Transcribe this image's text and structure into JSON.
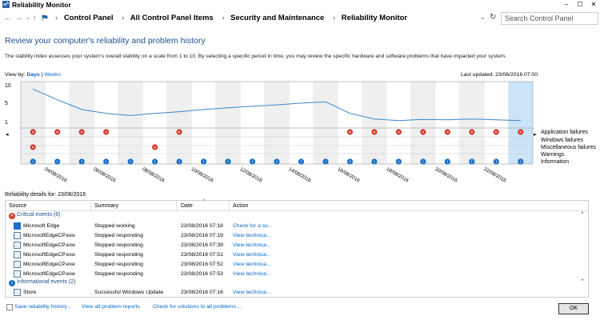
{
  "window": {
    "title": "Reliability Monitor",
    "controls": [
      "–",
      "☐",
      "✕"
    ]
  },
  "address": {
    "breadcrumbs": [
      "Control Panel",
      "All Control Panel Items",
      "Security and Maintenance",
      "Reliability Monitor"
    ],
    "search_placeholder": "Search Control Panel"
  },
  "header": {
    "title": "Review your computer's reliability and problem history",
    "description": "The stability index assesses your system's overall stability on a scale from 1 to 10. By selecting a specific period in time, you may review the specific hardware and software problems that have impacted your system.",
    "view_by_label": "View by:",
    "view_days": "Days",
    "view_sep": "|",
    "view_weeks": "Weeks",
    "last_updated": "Last updated: 23/08/2016 07:00"
  },
  "chart": {
    "y_ticks": [
      "10",
      "5",
      "1"
    ],
    "legend": [
      "Application failures",
      "Windows failures",
      "Miscellaneous failures",
      "Warnings",
      "Information"
    ],
    "date_labels": [
      "04/08/2016",
      "06/08/2016",
      "08/08/2016",
      "10/08/2016",
      "12/08/2016",
      "14/08/2016",
      "16/08/2016",
      "18/08/2016",
      "20/08/2016",
      "22/08/2016"
    ],
    "left_arrow": "◂",
    "right_arrow": "▸"
  },
  "chart_data": {
    "type": "line",
    "x": [
      "03/08/2016",
      "04/08/2016",
      "05/08/2016",
      "06/08/2016",
      "07/08/2016",
      "08/08/2016",
      "09/08/2016",
      "10/08/2016",
      "11/08/2016",
      "12/08/2016",
      "13/08/2016",
      "14/08/2016",
      "15/08/2016",
      "16/08/2016",
      "17/08/2016",
      "18/08/2016",
      "19/08/2016",
      "20/08/2016",
      "21/08/2016",
      "22/08/2016",
      "23/08/2016"
    ],
    "series": [
      {
        "values": [
          9.0,
          6.5,
          4.2,
          3.3,
          2.8,
          3.3,
          3.7,
          4.2,
          4.6,
          5.0,
          5.3,
          5.7,
          6.0,
          3.3,
          2.0,
          1.6,
          1.9,
          1.8,
          2.0,
          1.8,
          1.6
        ]
      }
    ],
    "ylim": [
      1,
      10
    ],
    "markers": {
      "application_failures": [
        0,
        1,
        2,
        3,
        6,
        13,
        14,
        15,
        16,
        17,
        18,
        19,
        20
      ],
      "windows_failures": [
        0
      ],
      "miscellaneous_failures": [
        5
      ],
      "information": [
        0,
        1,
        2,
        3,
        4,
        5,
        6,
        7,
        8,
        9,
        10,
        11,
        12,
        13,
        14,
        15,
        16,
        17,
        18,
        19,
        20
      ]
    },
    "selected_column": "23/08/2016"
  },
  "details": {
    "title": "Reliability details for: 23/08/2016",
    "columns": [
      "Source",
      "Summary",
      "Date",
      "Action"
    ],
    "critical_group": "Critical events (6)",
    "critical_rows": [
      {
        "source": "Microsoft Edge",
        "summary": "Stopped working",
        "date": "23/08/2016 07:18",
        "action": "Check for a so..."
      },
      {
        "source": "MicrosoftEdgeCP.exe",
        "summary": "Stopped responding",
        "date": "23/08/2016 07:19",
        "action": "View technica..."
      },
      {
        "source": "MicrosoftEdgeCP.exe",
        "summary": "Stopped responding",
        "date": "23/08/2016 07:39",
        "action": "View technica..."
      },
      {
        "source": "MicrosoftEdgeCP.exe",
        "summary": "Stopped responding",
        "date": "23/08/2016 07:51",
        "action": "View technica..."
      },
      {
        "source": "MicrosoftEdgeCP.exe",
        "summary": "Stopped responding",
        "date": "23/08/2016 07:52",
        "action": "View technica..."
      },
      {
        "source": "MicrosoftEdgeCP.exe",
        "summary": "Stopped responding",
        "date": "23/08/2016 07:53",
        "action": "View technica..."
      }
    ],
    "info_group": "Informational events (2)",
    "info_rows": [
      {
        "source": "Store",
        "summary": "Successful Windows Update",
        "date": "23/08/2016 07:16",
        "action": "View technica..."
      }
    ]
  },
  "footer": {
    "save": "Save reliability history...",
    "view_all": "View all problem reports",
    "check": "Check for solutions to all problems ...",
    "ok": "OK"
  },
  "colors": {
    "accent": "#1e4f8e",
    "link": "#0066cc",
    "error": "#d9342b",
    "info": "#1a6fc9",
    "selected": "#cce4f7"
  }
}
